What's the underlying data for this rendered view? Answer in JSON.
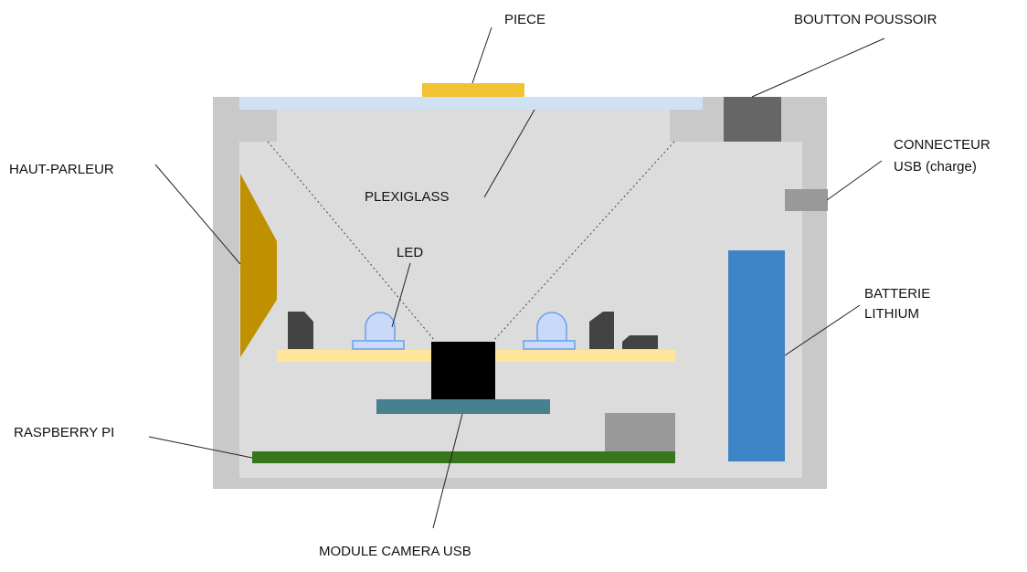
{
  "labels": {
    "piece": "PIECE",
    "bouton": "BOUTTON POUSSOIR",
    "haut_parleur": "HAUT-PARLEUR",
    "connecteur_l1": "CONNECTEUR",
    "connecteur_l2": "USB (charge)",
    "plexiglass": "PLEXIGLASS",
    "led": "LED",
    "batterie_l1": "BATTERIE",
    "batterie_l2": "LITHIUM",
    "raspberry": "RASPBERRY PI",
    "camera": "MODULE CAMERA USB"
  },
  "colors": {
    "casing": "#c9c9c9",
    "interior": "#dcdcdc",
    "plexiglass": "#cfe2f3",
    "piece": "#f1c232",
    "button": "#666666",
    "usb_connector": "#999999",
    "speaker": "#bf9000",
    "led_board": "#ffe599",
    "led": "#c9daf8",
    "led_outline": "#6d9eeb",
    "component": "#434343",
    "camera_lens": "#000000",
    "camera_board": "#45818e",
    "raspberry_pi": "#38761d",
    "raspberry_chip": "#999999",
    "battery": "#3d85c6"
  }
}
